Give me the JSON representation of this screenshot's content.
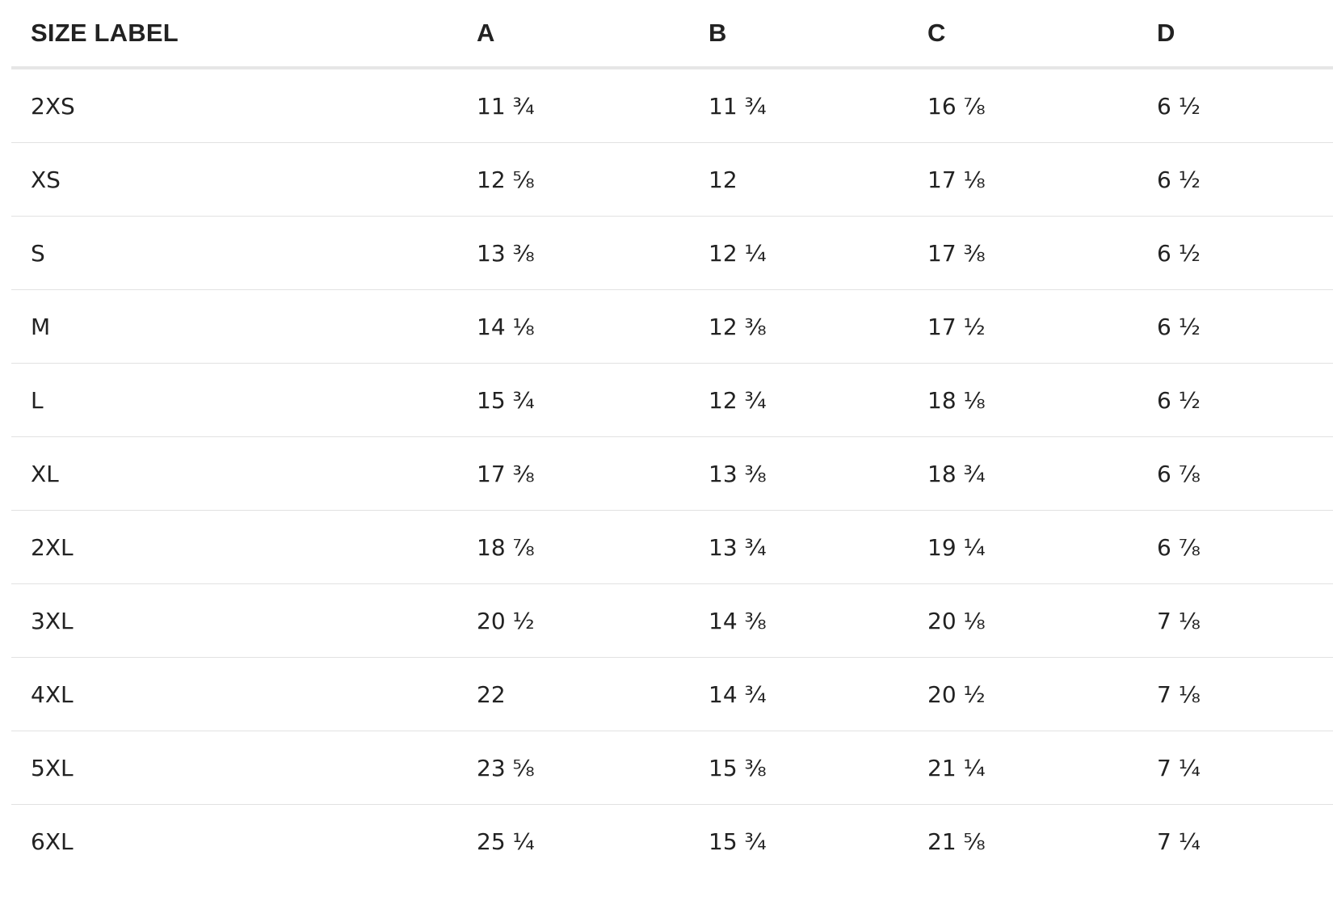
{
  "table": {
    "headers": [
      "SIZE LABEL",
      "A",
      "B",
      "C",
      "D"
    ],
    "rows": [
      [
        "2XS",
        "11 ¾",
        "11 ¾",
        "16 ⅞",
        "6 ½"
      ],
      [
        "XS",
        "12 ⅝",
        "12",
        "17 ⅛",
        "6 ½"
      ],
      [
        "S",
        "13 ⅜",
        "12 ¼",
        "17 ⅜",
        "6 ½"
      ],
      [
        "M",
        "14 ⅛",
        "12 ⅜",
        "17 ½",
        "6 ½"
      ],
      [
        "L",
        "15 ¾",
        "12 ¾",
        "18 ⅛",
        "6 ½"
      ],
      [
        "XL",
        "17 ⅜",
        "13 ⅜",
        "18 ¾",
        "6 ⅞"
      ],
      [
        "2XL",
        "18 ⅞",
        "13 ¾",
        "19 ¼",
        "6 ⅞"
      ],
      [
        "3XL",
        "20 ½",
        "14 ⅜",
        "20 ⅛",
        "7 ⅛"
      ],
      [
        "4XL",
        "22",
        "14 ¾",
        "20 ½",
        "7 ⅛"
      ],
      [
        "5XL",
        "23 ⅝",
        "15 ⅜",
        "21 ¼",
        "7 ¼"
      ],
      [
        "6XL",
        "25 ¼",
        "15 ¾",
        "21 ⅝",
        "7 ¼"
      ]
    ]
  }
}
